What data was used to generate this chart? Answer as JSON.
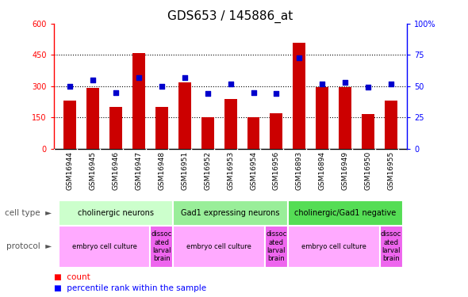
{
  "title": "GDS653 / 145886_at",
  "samples": [
    "GSM16944",
    "GSM16945",
    "GSM16946",
    "GSM16947",
    "GSM16948",
    "GSM16951",
    "GSM16952",
    "GSM16953",
    "GSM16954",
    "GSM16956",
    "GSM16893",
    "GSM16894",
    "GSM16949",
    "GSM16950",
    "GSM16955"
  ],
  "counts": [
    230,
    290,
    200,
    460,
    200,
    320,
    150,
    240,
    150,
    170,
    510,
    295,
    295,
    165,
    230
  ],
  "percentile": [
    50,
    55,
    45,
    57,
    50,
    57,
    44,
    52,
    45,
    44,
    73,
    52,
    53,
    49,
    52
  ],
  "ylim_left": [
    0,
    600
  ],
  "ylim_right": [
    0,
    100
  ],
  "yticks_left": [
    0,
    150,
    300,
    450,
    600
  ],
  "yticks_right": [
    0,
    25,
    50,
    75,
    100
  ],
  "cell_type_groups": [
    {
      "label": "cholinergic neurons",
      "start": 0,
      "end": 5,
      "color": "#ccffcc"
    },
    {
      "label": "Gad1 expressing neurons",
      "start": 5,
      "end": 10,
      "color": "#99ee99"
    },
    {
      "label": "cholinergic/Gad1 negative",
      "start": 10,
      "end": 15,
      "color": "#55dd55"
    }
  ],
  "protocol_groups": [
    {
      "label": "embryo cell culture",
      "start": 0,
      "end": 4,
      "color": "#ffaaff"
    },
    {
      "label": "dissoc\nated\nlarval\nbrain",
      "start": 4,
      "end": 5,
      "color": "#ee66ee"
    },
    {
      "label": "embryo cell culture",
      "start": 5,
      "end": 9,
      "color": "#ffaaff"
    },
    {
      "label": "dissoc\nated\nlarval\nbrain",
      "start": 9,
      "end": 10,
      "color": "#ee66ee"
    },
    {
      "label": "embryo cell culture",
      "start": 10,
      "end": 14,
      "color": "#ffaaff"
    },
    {
      "label": "dissoc\nated\nlarval\nbrain",
      "start": 14,
      "end": 15,
      "color": "#ee66ee"
    }
  ],
  "bar_color": "#cc0000",
  "dot_color": "#0000cc",
  "grid_color": "#000000",
  "xtick_bg": "#cccccc",
  "spine_color_left": "#cc0000",
  "spine_color_right": "#0000cc"
}
